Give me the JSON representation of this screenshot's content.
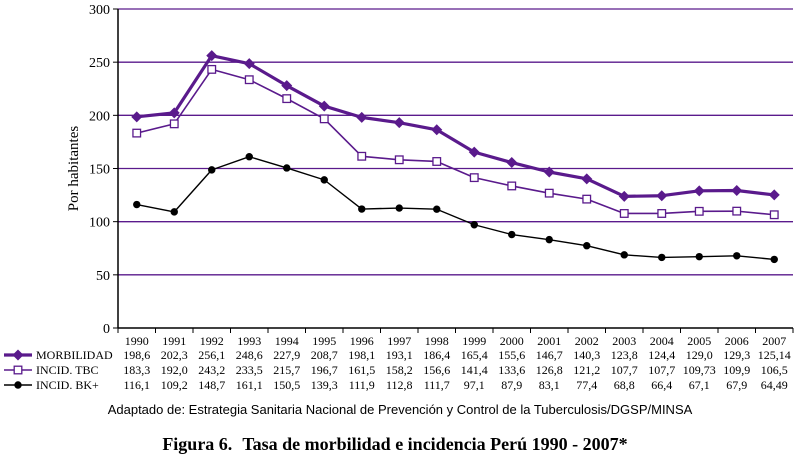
{
  "chart_data": {
    "type": "line",
    "ylabel": "Por habitantes",
    "ylim": [
      0,
      300
    ],
    "yticks": [
      "0",
      "50",
      "100",
      "150",
      "200",
      "250",
      "300"
    ],
    "categories": [
      "1990",
      "1991",
      "1992",
      "1993",
      "1994",
      "1995",
      "1996",
      "1997",
      "1998",
      "1999",
      "2000",
      "2001",
      "2002",
      "2003",
      "2004",
      "2005",
      "2006",
      "2007"
    ],
    "series": [
      {
        "name": "MORBILIDAD",
        "color": "#5a1a8c",
        "marker": "diamond",
        "values": [
          198.6,
          202.3,
          256.1,
          248.6,
          227.9,
          208.7,
          198.1,
          193.1,
          186.4,
          165.4,
          155.6,
          146.7,
          140.3,
          123.8,
          124.4,
          129.0,
          129.3,
          125.14
        ],
        "labels": [
          "198,6",
          "202,3",
          "256,1",
          "248,6",
          "227,9",
          "208,7",
          "198,1",
          "193,1",
          "186,4",
          "165,4",
          "155,6",
          "146,7",
          "140,3",
          "123,8",
          "124,4",
          "129,0",
          "129,3",
          "125,14"
        ]
      },
      {
        "name": "INCID. TBC",
        "color": "#5a1a8c",
        "marker": "square-open",
        "values": [
          183.3,
          192.0,
          243.2,
          233.5,
          215.7,
          196.7,
          161.5,
          158.2,
          156.6,
          141.4,
          133.6,
          126.8,
          121.2,
          107.7,
          107.7,
          109.73,
          109.9,
          106.5
        ],
        "labels": [
          "183,3",
          "192,0",
          "243,2",
          "233,5",
          "215,7",
          "196,7",
          "161,5",
          "158,2",
          "156,6",
          "141,4",
          "133,6",
          "126,8",
          "121,2",
          "107,7",
          "107,7",
          "109,73",
          "109,9",
          "106,5"
        ]
      },
      {
        "name": "INCID. BK+",
        "color": "#000000",
        "marker": "circle",
        "values": [
          116.1,
          109.2,
          148.7,
          161.1,
          150.5,
          139.3,
          111.9,
          112.8,
          111.7,
          97.1,
          87.9,
          83.1,
          77.4,
          68.8,
          66.4,
          67.1,
          67.9,
          64.49
        ],
        "labels": [
          "116,1",
          "109,2",
          "148,7",
          "161,1",
          "150,5",
          "139,3",
          "111,9",
          "112,8",
          "111,7",
          "97,1",
          "87,9",
          "83,1",
          "77,4",
          "68,8",
          "66,4",
          "67,1",
          "67,9",
          "64,49"
        ]
      }
    ],
    "grid": true
  },
  "source_note": "Adaptado de:  Estrategia Sanitaria Nacional de Prevención y Control de  la Tuberculosis/DGSP/MINSA",
  "figure_number": "Figura 6.",
  "figure_title": "Tasa de morbilidad e incidencia Perú 1990 - 2007*"
}
